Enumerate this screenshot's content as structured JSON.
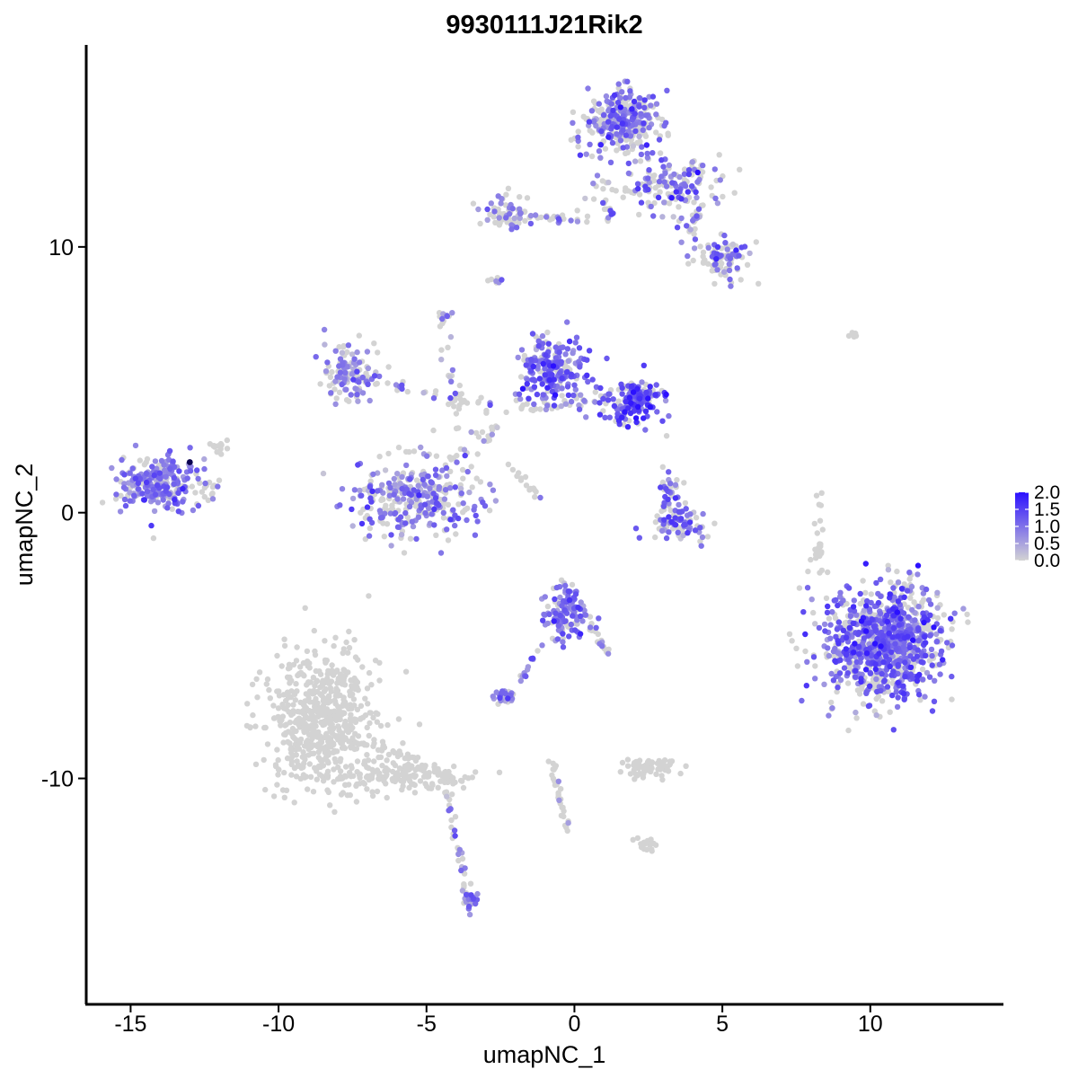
{
  "chart_data": {
    "type": "scatter",
    "title": "9930111J21Rik2",
    "xlabel": "umapNC_1",
    "ylabel": "umapNC_2",
    "xlim": [
      -16.5,
      14.5
    ],
    "ylim": [
      -18.5,
      17.6
    ],
    "xticks": [
      -15,
      -10,
      -5,
      0,
      5,
      10
    ],
    "yticks": [
      -10,
      0,
      10
    ],
    "xtick_labels": [
      "-15",
      "-10",
      "-5",
      "0",
      "5",
      "10"
    ],
    "ytick_labels": [
      "-10",
      "0",
      "10"
    ],
    "grid": false,
    "legend": {
      "placement": "right",
      "ticks": [
        2.0,
        1.5,
        1.0,
        0.5,
        0.0
      ],
      "tick_labels": [
        "2.0",
        "1.5",
        "1.0",
        "0.5",
        "0.0"
      ],
      "color_low": "#d3d3d3",
      "color_high": "#2b10ff"
    },
    "color_scale": {
      "low": "#d3d3d3",
      "high": "#2b10ff",
      "min": 0.0,
      "max": 2.0
    },
    "clusters": [
      {
        "cx": -14.0,
        "cy": 1.1,
        "sx": 0.75,
        "sy": 0.6,
        "n": 260,
        "expr_frac": 0.75,
        "expr_mean": 0.9
      },
      {
        "cx": -8.5,
        "cy": -7.8,
        "sx": 1.1,
        "sy": 1.6,
        "n": 600,
        "expr_frac": 0.0,
        "expr_mean": 0.0
      },
      {
        "cx": -5.8,
        "cy": -9.9,
        "sx": 1.2,
        "sy": 0.35,
        "n": 130,
        "expr_frac": 0.0,
        "expr_mean": 0.0
      },
      {
        "cx": -5.3,
        "cy": 0.5,
        "sx": 1.3,
        "sy": 0.8,
        "n": 320,
        "expr_frac": 0.5,
        "expr_mean": 0.9
      },
      {
        "cx": -7.5,
        "cy": 5.3,
        "sx": 0.55,
        "sy": 0.65,
        "n": 120,
        "expr_frac": 0.55,
        "expr_mean": 0.8
      },
      {
        "cx": -0.7,
        "cy": 5.4,
        "sx": 0.65,
        "sy": 0.75,
        "n": 220,
        "expr_frac": 0.75,
        "expr_mean": 1.1
      },
      {
        "cx": 2.0,
        "cy": 4.2,
        "sx": 0.55,
        "sy": 0.5,
        "n": 170,
        "expr_frac": 0.8,
        "expr_mean": 1.3
      },
      {
        "cx": 1.6,
        "cy": 14.7,
        "sx": 0.75,
        "sy": 0.7,
        "n": 320,
        "expr_frac": 0.55,
        "expr_mean": 1.0
      },
      {
        "cx": 3.2,
        "cy": 12.3,
        "sx": 1.0,
        "sy": 0.6,
        "n": 150,
        "expr_frac": 0.45,
        "expr_mean": 1.0
      },
      {
        "cx": 5.0,
        "cy": 9.5,
        "sx": 0.55,
        "sy": 0.5,
        "n": 90,
        "expr_frac": 0.5,
        "expr_mean": 1.0
      },
      {
        "cx": -2.4,
        "cy": 11.3,
        "sx": 0.45,
        "sy": 0.4,
        "n": 60,
        "expr_frac": 0.35,
        "expr_mean": 0.9
      },
      {
        "cx": -0.3,
        "cy": -3.7,
        "sx": 0.45,
        "sy": 0.6,
        "n": 130,
        "expr_frac": 0.6,
        "expr_mean": 1.0
      },
      {
        "cx": 10.4,
        "cy": -4.9,
        "sx": 1.15,
        "sy": 1.25,
        "n": 1000,
        "expr_frac": 0.6,
        "expr_mean": 1.1
      },
      {
        "cx": 3.5,
        "cy": -0.4,
        "sx": 0.55,
        "sy": 0.35,
        "n": 80,
        "expr_frac": 0.6,
        "expr_mean": 1.1
      },
      {
        "cx": 3.2,
        "cy": 0.9,
        "sx": 0.25,
        "sy": 0.4,
        "n": 40,
        "expr_frac": 0.5,
        "expr_mean": 1.0
      },
      {
        "cx": 2.5,
        "cy": -9.6,
        "sx": 0.55,
        "sy": 0.18,
        "n": 70,
        "expr_frac": 0.0,
        "expr_mean": 0.0
      },
      {
        "cx": -2.3,
        "cy": -6.9,
        "sx": 0.25,
        "sy": 0.15,
        "n": 30,
        "expr_frac": 0.6,
        "expr_mean": 0.9
      },
      {
        "cx": 2.4,
        "cy": -12.5,
        "sx": 0.25,
        "sy": 0.12,
        "n": 18,
        "expr_frac": 0.0,
        "expr_mean": 0.0
      },
      {
        "cx": -3.5,
        "cy": -14.6,
        "sx": 0.15,
        "sy": 0.3,
        "n": 22,
        "expr_frac": 0.7,
        "expr_mean": 0.9
      },
      {
        "cx": 8.2,
        "cy": -1.3,
        "sx": 0.2,
        "sy": 0.6,
        "n": 15,
        "expr_frac": 0.0,
        "expr_mean": 0.0
      },
      {
        "cx": -4.4,
        "cy": 7.3,
        "sx": 0.15,
        "sy": 0.15,
        "n": 12,
        "expr_frac": 0.7,
        "expr_mean": 0.8
      },
      {
        "cx": -2.7,
        "cy": 8.7,
        "sx": 0.15,
        "sy": 0.1,
        "n": 8,
        "expr_frac": 0.5,
        "expr_mean": 0.7
      },
      {
        "cx": -11.9,
        "cy": 2.5,
        "sx": 0.3,
        "sy": 0.2,
        "n": 12,
        "expr_frac": 0.0,
        "expr_mean": 0.0
      },
      {
        "cx": 9.4,
        "cy": 6.7,
        "sx": 0.15,
        "sy": 0.05,
        "n": 5,
        "expr_frac": 0.0,
        "expr_mean": 0.0
      }
    ],
    "trails": [
      {
        "from": [
          -7.2,
          5.0
        ],
        "to": [
          -2.6,
          4.0
        ],
        "n": 40,
        "spread": 0.3,
        "expr_frac": 0.3
      },
      {
        "from": [
          -2.6,
          4.0
        ],
        "to": [
          1.5,
          4.3
        ],
        "n": 40,
        "spread": 0.3,
        "expr_frac": 0.4
      },
      {
        "from": [
          -4.6,
          1.5
        ],
        "to": [
          -2.3,
          3.5
        ],
        "n": 25,
        "spread": 0.3,
        "expr_frac": 0.3
      },
      {
        "from": [
          -2.4,
          1.9
        ],
        "to": [
          -1.2,
          0.6
        ],
        "n": 15,
        "spread": 0.15,
        "expr_frac": 0.1
      },
      {
        "from": [
          -4.4,
          6.8
        ],
        "to": [
          -3.8,
          3.0
        ],
        "n": 15,
        "spread": 0.2,
        "expr_frac": 0.3
      },
      {
        "from": [
          -2.4,
          11.3
        ],
        "to": [
          0.5,
          11.0
        ],
        "n": 30,
        "spread": 0.18,
        "expr_frac": 0.5
      },
      {
        "from": [
          0.8,
          13.0
        ],
        "to": [
          1.2,
          10.9
        ],
        "n": 20,
        "spread": 0.25,
        "expr_frac": 0.4
      },
      {
        "from": [
          -7.0,
          -8.6
        ],
        "to": [
          -3.6,
          -10.3
        ],
        "n": 50,
        "spread": 0.25,
        "expr_frac": 0.0
      },
      {
        "from": [
          -4.3,
          -10.5
        ],
        "to": [
          -3.6,
          -14.6
        ],
        "n": 35,
        "spread": 0.15,
        "expr_frac": 0.2
      },
      {
        "from": [
          -0.8,
          -9.3
        ],
        "to": [
          -0.2,
          -12.0
        ],
        "n": 30,
        "spread": 0.12,
        "expr_frac": 0.1
      },
      {
        "from": [
          -1.2,
          -5.0
        ],
        "to": [
          -1.8,
          -6.4
        ],
        "n": 15,
        "spread": 0.12,
        "expr_frac": 0.5
      },
      {
        "from": [
          0.5,
          -4.2
        ],
        "to": [
          1.2,
          -5.4
        ],
        "n": 15,
        "spread": 0.12,
        "expr_frac": 0.5
      },
      {
        "from": [
          3.7,
          10.3
        ],
        "to": [
          4.4,
          11.7
        ],
        "n": 25,
        "spread": 0.25,
        "expr_frac": 0.4
      },
      {
        "from": [
          8.3,
          -1.9
        ],
        "to": [
          8.3,
          0.8
        ],
        "n": 12,
        "spread": 0.08,
        "expr_frac": 0.0
      },
      {
        "from": [
          -13.0,
          -0.1
        ],
        "to": [
          -12.1,
          1.1
        ],
        "n": 12,
        "spread": 0.2,
        "expr_frac": 0.3
      }
    ],
    "max_point": {
      "x": -13.0,
      "y": 1.9,
      "value": 2.0
    }
  }
}
